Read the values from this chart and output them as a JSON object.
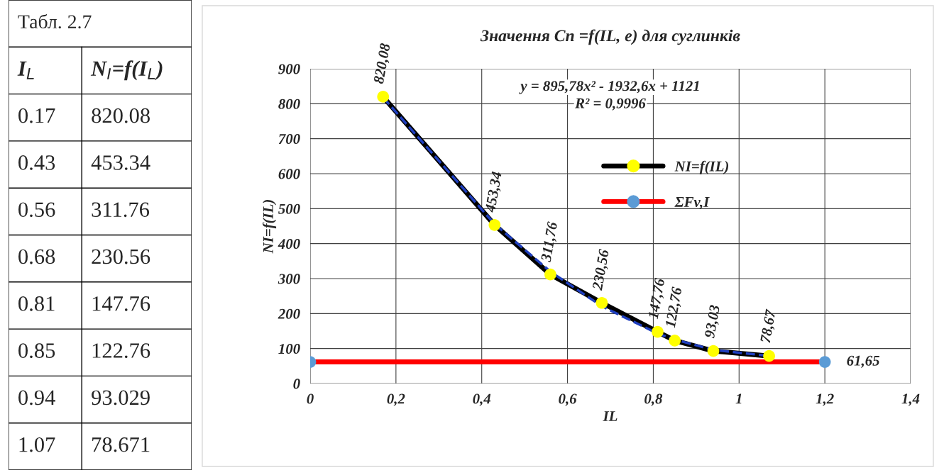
{
  "chart_data": [
    {
      "type": "other",
      "title": "Табл. 2.7",
      "annotations": [
        "I$_{L}$",
        "N$_{I}$=f(I$_{L}$)",
        "0.17",
        "820.08",
        "0.43",
        "453.34",
        "0.56",
        "311.76",
        "0.68",
        "230.56",
        "0.81",
        "147.76",
        "0.85",
        "122.76",
        "0.94",
        "93.029",
        "1.07",
        "78.671"
      ]
    },
    {
      "type": "line",
      "title": "Значення Cn =f(IL, e) для суглинків",
      "xlabel": "IL",
      "ylabel": "NI=f(IL)",
      "xlim": [
        0,
        1.4
      ],
      "xticks": [
        0,
        {
          "value": 0.2,
          "label": "0,2"
        },
        {
          "value": 0.4,
          "label": "0,4"
        },
        {
          "value": 0.6,
          "label": "0,6"
        },
        {
          "value": 0.8,
          "label": "0,8"
        },
        1,
        {
          "value": 1.2,
          "label": "1,2"
        },
        {
          "value": 1.4,
          "label": "1,4"
        }
      ],
      "ylim": [
        0,
        900
      ],
      "yticks": [
        0,
        100,
        200,
        300,
        400,
        500,
        600,
        700,
        800,
        900
      ],
      "grid": true,
      "legend": "top right",
      "series": [
        {
          "name": "NI=f(IL)",
          "color": "#000000",
          "colors": [
            "#ffff00",
            "#ffff00",
            "#ffff00",
            "#ffff00",
            "#ffff00",
            "#ffff00",
            "#ffff00",
            "#ffff00"
          ],
          "marker": "circle",
          "x": [
            0.17,
            0.43,
            0.56,
            0.68,
            0.81,
            0.85,
            0.94,
            1.07
          ],
          "values": [
            820.08,
            453.34,
            311.76,
            230.56,
            147.76,
            122.76,
            93.03,
            78.67
          ],
          "value_labels": [
            "820,08",
            "453,34",
            "311,76",
            "230,56",
            "147,76",
            "122,76",
            "93,03",
            "78,67"
          ]
        },
        {
          "name": "ΣFv,I",
          "color": "#ff0000",
          "colors": [
            "#5b9bd5",
            "#5b9bd5"
          ],
          "marker": "circle",
          "x": [
            0,
            1.2
          ],
          "values": [
            61.65,
            61.65
          ],
          "value_labels": [
            null,
            "61,65"
          ]
        },
        {
          "color": "#1f3fbf",
          "marker": "none",
          "line_style": "dashed",
          "x": [
            0.17,
            0.43,
            0.56,
            0.68,
            0.81,
            0.85,
            0.94,
            1.07
          ],
          "values": [
            818,
            456,
            320,
            221,
            143,
            126,
            96,
            79
          ]
        }
      ],
      "annotations": [
        "y = 895,78x² - 1932,6x + 1121",
        "R² = 0,9996"
      ]
    }
  ]
}
